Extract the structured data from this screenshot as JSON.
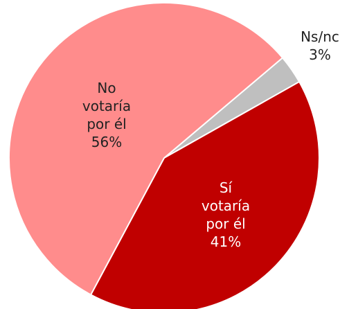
{
  "chart_data": {
    "type": "pie",
    "categories": [
      "Ns/nc",
      "Sí votaría por él",
      "No votaría por él"
    ],
    "values": [
      3,
      41,
      56
    ],
    "value_labels": [
      "3%",
      "41%",
      "56%"
    ],
    "colors": [
      "#bfbfbf",
      "#c00000",
      "#ff8c8c"
    ]
  }
}
